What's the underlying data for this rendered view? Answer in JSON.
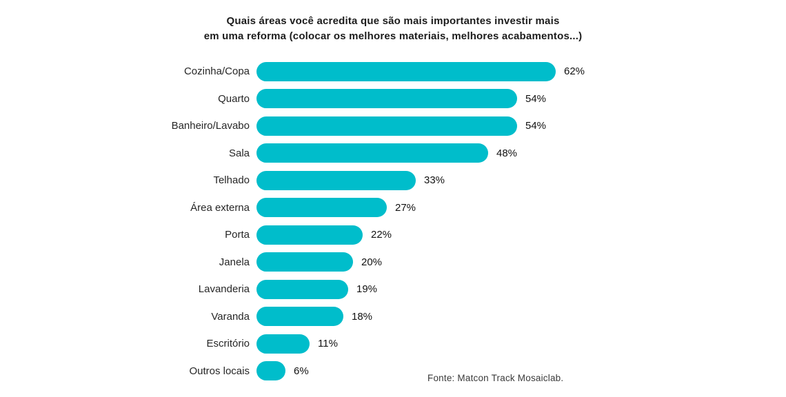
{
  "title": {
    "line1": "Quais áreas você acredita que são mais importantes investir mais",
    "line2": "em uma reforma (colocar os melhores materiais, melhores acabamentos...)"
  },
  "source": "Fonte: Matcon Track Mosaiclab.",
  "chart_data": {
    "type": "bar",
    "orientation": "horizontal",
    "title": "Quais áreas você acredita que são mais importantes investir mais em uma reforma (colocar os melhores materiais, melhores acabamentos...)",
    "categories": [
      "Cozinha/Copa",
      "Quarto",
      "Banheiro/Lavabo",
      "Sala",
      "Telhado",
      "Área externa",
      "Porta",
      "Janela",
      "Lavanderia",
      "Varanda",
      "Escritório",
      "Outros locais"
    ],
    "values": [
      62,
      54,
      54,
      48,
      33,
      27,
      22,
      20,
      19,
      18,
      11,
      6
    ],
    "display_values": [
      "62%",
      "54%",
      "54%",
      "48%",
      "33%",
      "27%",
      "22%",
      "20%",
      "19%",
      "18%",
      "11%",
      "6%"
    ],
    "value_suffix": "%",
    "xlim": [
      0,
      62
    ],
    "bar_color": "#00BDCB",
    "grid": false,
    "legend": false,
    "source": "Fonte: Matcon Track Mosaiclab."
  }
}
